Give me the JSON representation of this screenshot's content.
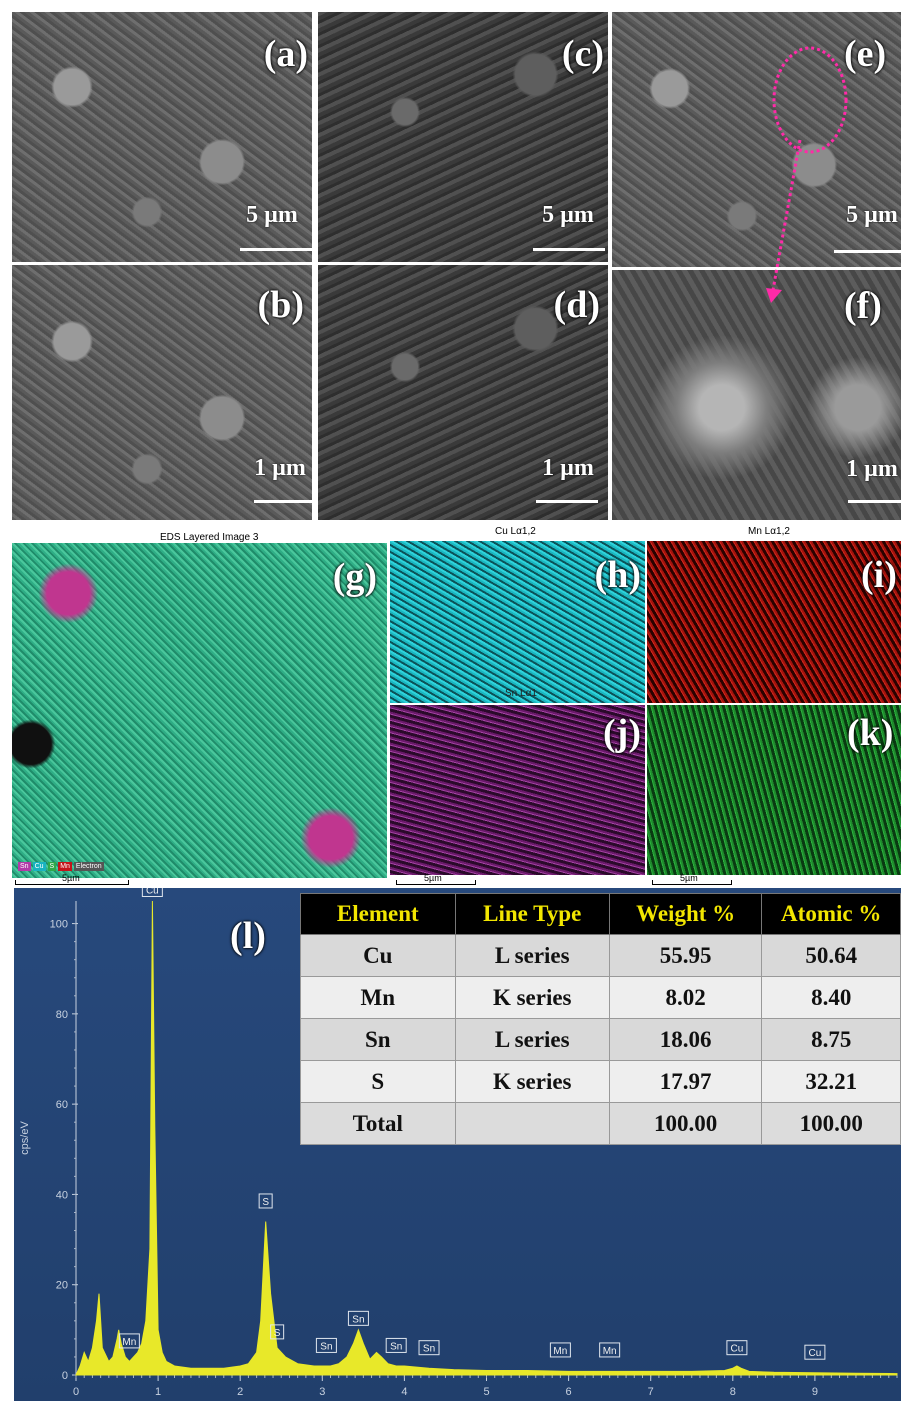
{
  "sem_panels": [
    {
      "label": "(a)",
      "scale": "5 µm"
    },
    {
      "label": "(b)",
      "scale": "1 µm"
    },
    {
      "label": "(c)",
      "scale": "5 µm"
    },
    {
      "label": "(d)",
      "scale": "1 µm"
    },
    {
      "label": "(e)",
      "scale": "5 µm"
    },
    {
      "label": "(f)",
      "scale": "1 µm"
    }
  ],
  "eds": {
    "layered_title": "EDS Layered Image 3",
    "cu_title": "Cu Lα1,2",
    "mn_title": "Mn Lα1,2",
    "sn_title": "Sn Lα1",
    "labels": {
      "g": "(g)",
      "h": "(h)",
      "i": "(i)",
      "j": "(j)",
      "k": "(k)"
    },
    "scale": "5µm",
    "legend": [
      "Sn",
      "Cu",
      "S",
      "Mn",
      "Electron"
    ],
    "legend_colors": [
      "#b23aa8",
      "#19b3c0",
      "#2ea84a",
      "#c4141a",
      "#555555"
    ]
  },
  "spectrum": {
    "panel_label": "(l)",
    "ylabel": "cps/eV",
    "yticks": [
      "0",
      "20",
      "40",
      "60",
      "80",
      "100"
    ],
    "xticks": [
      "0",
      "1",
      "2",
      "3",
      "4",
      "5",
      "6",
      "7",
      "8",
      "9"
    ],
    "peak_labels": [
      "Cu",
      "Mn",
      "S",
      "S",
      "Sn",
      "Sn",
      "Sn",
      "Sn",
      "Mn",
      "Mn",
      "Cu",
      "Cu"
    ],
    "colors": {
      "trace": "#e8e829",
      "background": "#234575"
    }
  },
  "chart_data": {
    "type": "line",
    "ylabel": "cps/eV",
    "xlim": [
      0,
      10
    ],
    "ylim": [
      0,
      105
    ],
    "x": [
      0.0,
      0.05,
      0.1,
      0.15,
      0.2,
      0.25,
      0.28,
      0.32,
      0.4,
      0.45,
      0.5,
      0.52,
      0.55,
      0.6,
      0.65,
      0.7,
      0.75,
      0.8,
      0.85,
      0.9,
      0.93,
      0.96,
      1.0,
      1.05,
      1.1,
      1.2,
      1.4,
      1.6,
      1.8,
      2.0,
      2.1,
      2.2,
      2.25,
      2.31,
      2.37,
      2.45,
      2.55,
      2.7,
      2.9,
      3.1,
      3.2,
      3.3,
      3.38,
      3.44,
      3.5,
      3.58,
      3.66,
      3.72,
      3.8,
      3.9,
      4.0,
      4.3,
      4.6,
      5.0,
      5.5,
      6.0,
      6.5,
      7.0,
      7.5,
      7.9,
      8.0,
      8.05,
      8.1,
      8.2,
      8.5,
      9.0,
      9.5,
      10.0
    ],
    "y": [
      0,
      2,
      5,
      3,
      6,
      12,
      18,
      6,
      3,
      4,
      8,
      10,
      7,
      4,
      3,
      4,
      5,
      7,
      12,
      28,
      105,
      55,
      10,
      5,
      3,
      2,
      1.5,
      1.5,
      1.5,
      2,
      2.5,
      5,
      12,
      34,
      18,
      6,
      4,
      2.5,
      2,
      2,
      2.5,
      4,
      7,
      10,
      7,
      3.5,
      5,
      4,
      2.5,
      2,
      2,
      1.5,
      1.2,
      1,
      1,
      0.8,
      0.8,
      0.8,
      0.8,
      1,
      1.5,
      2,
      1.5,
      0.8,
      0.6,
      0.5,
      0.4,
      0.3
    ],
    "table": {
      "columns": [
        "Element",
        "Line Type",
        "Weight %",
        "Atomic %"
      ],
      "rows": [
        [
          "Cu",
          "L series",
          "55.95",
          "50.64"
        ],
        [
          "Mn",
          "K series",
          "8.02",
          "8.40"
        ],
        [
          "Sn",
          "L series",
          "18.06",
          "8.75"
        ],
        [
          "S",
          "K series",
          "17.97",
          "32.21"
        ],
        [
          "Total",
          "",
          "100.00",
          "100.00"
        ]
      ]
    }
  }
}
